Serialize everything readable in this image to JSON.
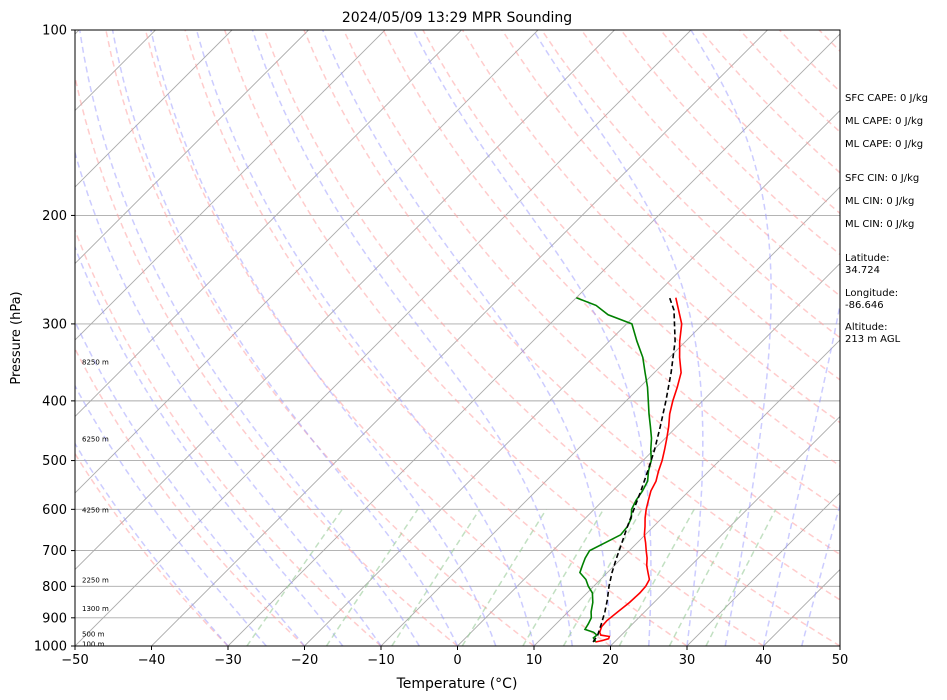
{
  "chart_data": {
    "type": "line",
    "subtype": "skew-t log-p sounding",
    "title": "2024/05/09 13:29 MPR Sounding",
    "xlabel": "Temperature (°C)",
    "ylabel": "Pressure (hPa)",
    "xlim": [
      -50,
      50
    ],
    "ylim": [
      1000,
      100
    ],
    "y_scale": "log",
    "x_ticks": [
      "−50",
      "−40",
      "−30",
      "−20",
      "−10",
      "0",
      "10",
      "20",
      "30",
      "40",
      "50"
    ],
    "y_ticks": [
      "100",
      "200",
      "300",
      "400",
      "500",
      "600",
      "700",
      "800",
      "900",
      "1000"
    ],
    "height_labels": [
      {
        "p": 990,
        "label": "100 m"
      },
      {
        "p": 955,
        "label": "500 m"
      },
      {
        "p": 868,
        "label": "1300 m"
      },
      {
        "p": 780,
        "label": "2250 m"
      },
      {
        "p": 600,
        "label": "4250 m"
      },
      {
        "p": 460,
        "label": "6250 m"
      },
      {
        "p": 345,
        "label": "8250 m"
      }
    ],
    "grid": true,
    "legend": "none",
    "series": [
      {
        "role": "temperature",
        "color": "#ff0000",
        "points": [
          [
            17.5,
            985
          ],
          [
            18.2,
            980
          ],
          [
            18.8,
            973
          ],
          [
            18.6,
            965
          ],
          [
            17.3,
            960
          ],
          [
            16.8,
            950
          ],
          [
            16.3,
            930
          ],
          [
            16.2,
            910
          ],
          [
            16.5,
            880
          ],
          [
            16.8,
            850
          ],
          [
            16.9,
            820
          ],
          [
            16.8,
            800
          ],
          [
            16.4,
            780
          ],
          [
            15.3,
            760
          ],
          [
            14.2,
            740
          ],
          [
            13.3,
            720
          ],
          [
            12.2,
            700
          ],
          [
            11.1,
            680
          ],
          [
            9.9,
            660
          ],
          [
            8.9,
            640
          ],
          [
            7.8,
            620
          ],
          [
            6.8,
            600
          ],
          [
            5.9,
            580
          ],
          [
            5.0,
            560
          ],
          [
            4.4,
            540
          ],
          [
            3.4,
            520
          ],
          [
            2.5,
            500
          ],
          [
            1.4,
            480
          ],
          [
            0.2,
            460
          ],
          [
            -1.1,
            440
          ],
          [
            -2.6,
            420
          ],
          [
            -3.9,
            400
          ],
          [
            -5.1,
            380
          ],
          [
            -6.5,
            360
          ],
          [
            -8.7,
            340
          ],
          [
            -10.8,
            320
          ],
          [
            -12.8,
            300
          ],
          [
            -15.0,
            285
          ],
          [
            -17.0,
            272
          ]
        ]
      },
      {
        "role": "dewpoint",
        "color": "#008000",
        "points": [
          [
            17.4,
            985
          ],
          [
            17.3,
            980
          ],
          [
            16.7,
            970
          ],
          [
            16.8,
            960
          ],
          [
            16.0,
            950
          ],
          [
            14.5,
            940
          ],
          [
            14.2,
            920
          ],
          [
            13.8,
            900
          ],
          [
            13.0,
            880
          ],
          [
            12.0,
            850
          ],
          [
            10.7,
            820
          ],
          [
            9.3,
            800
          ],
          [
            8.1,
            780
          ],
          [
            6.4,
            760
          ],
          [
            5.8,
            740
          ],
          [
            5.2,
            720
          ],
          [
            4.8,
            700
          ],
          [
            5.8,
            680
          ],
          [
            6.8,
            660
          ],
          [
            6.6,
            640
          ],
          [
            6.0,
            620
          ],
          [
            4.9,
            600
          ],
          [
            4.3,
            580
          ],
          [
            3.9,
            560
          ],
          [
            3.3,
            540
          ],
          [
            2.1,
            520
          ],
          [
            1.1,
            500
          ],
          [
            -0.4,
            480
          ],
          [
            -1.8,
            460
          ],
          [
            -3.5,
            440
          ],
          [
            -5.3,
            420
          ],
          [
            -7.1,
            400
          ],
          [
            -9.0,
            380
          ],
          [
            -11.2,
            360
          ],
          [
            -13.5,
            340
          ],
          [
            -16.4,
            320
          ],
          [
            -19.3,
            300
          ],
          [
            -23.6,
            290
          ],
          [
            -26.4,
            280
          ],
          [
            -30.0,
            272
          ]
        ]
      },
      {
        "role": "parcel profile",
        "color": "#000000",
        "dashed": true,
        "points": [
          [
            17.2,
            985
          ],
          [
            16.9,
            960
          ],
          [
            15.9,
            920
          ],
          [
            14.8,
            880
          ],
          [
            13.5,
            840
          ],
          [
            12.0,
            800
          ],
          [
            10.6,
            760
          ],
          [
            9.3,
            720
          ],
          [
            8.0,
            680
          ],
          [
            6.6,
            640
          ],
          [
            5.2,
            600
          ],
          [
            3.7,
            560
          ],
          [
            2.0,
            520
          ],
          [
            0.1,
            480
          ],
          [
            -2.2,
            440
          ],
          [
            -4.8,
            400
          ],
          [
            -7.8,
            360
          ],
          [
            -11.4,
            320
          ],
          [
            -15.6,
            285
          ],
          [
            -17.8,
            272
          ]
        ]
      }
    ]
  },
  "side_info": {
    "sfc_cape": "SFC CAPE: 0 J/kg",
    "ml_cape_1": "ML CAPE: 0 J/kg",
    "ml_cape_2": "ML CAPE: 0 J/kg",
    "sfc_cin": "SFC CIN: 0 J/kg",
    "ml_cin_1": "ML CIN: 0 J/kg",
    "ml_cin_2": "ML CIN: 0 J/kg",
    "latitude": "Latitude:\n34.724",
    "longitude": "Longitude:\n-86.646",
    "altitude": "Altitude:\n213 m AGL"
  },
  "colors": {
    "dry_adiabat": "#ff9999",
    "moist_adiabat": "#9999ff",
    "mixing_ratio": "#99cc99",
    "isotherm": "#aaaaaa",
    "isobar": "#aaaaaa"
  }
}
